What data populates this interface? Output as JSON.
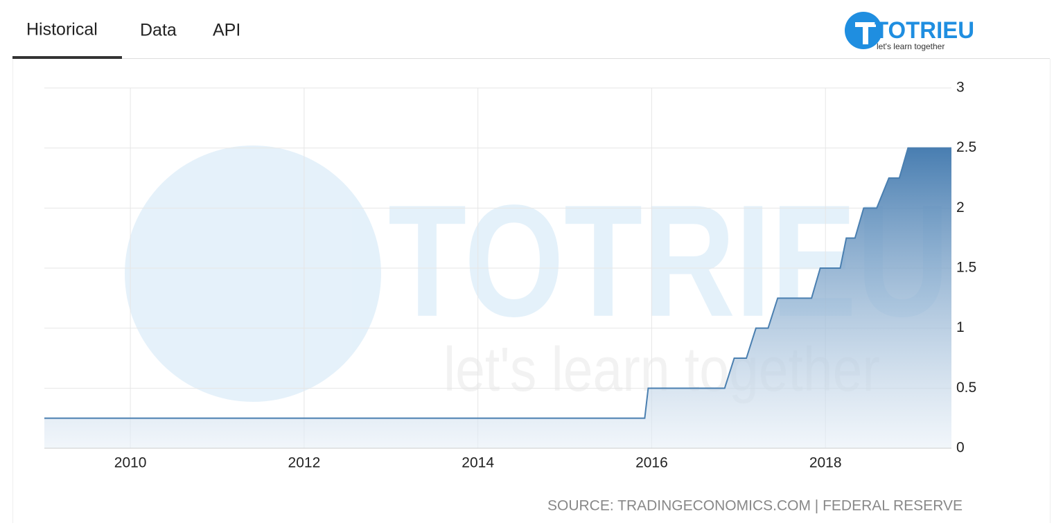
{
  "tabs": [
    "Historical",
    "Data",
    "API"
  ],
  "logo": {
    "name": "TOTRIEU",
    "tagline": "let's learn together"
  },
  "chart_data": {
    "type": "line",
    "x": [
      2009.01,
      2015.92,
      2015.96,
      2016.84,
      2016.95,
      2017.09,
      2017.2,
      2017.34,
      2017.45,
      2017.84,
      2017.94,
      2018.17,
      2018.24,
      2018.34,
      2018.44,
      2018.59,
      2018.73,
      2018.85,
      2018.95,
      2019.45
    ],
    "values": [
      0.25,
      0.25,
      0.5,
      0.5,
      0.75,
      0.75,
      1,
      1,
      1.25,
      1.25,
      1.5,
      1.5,
      1.75,
      1.75,
      2,
      2,
      2.25,
      2.25,
      2.5,
      2.5
    ],
    "color": "#4a7fb0",
    "xlim": [
      2009.01,
      2019.45
    ],
    "xticks": [
      2010,
      2012,
      2014,
      2016,
      2018
    ],
    "ylim": [
      0,
      3
    ],
    "yticks": [
      0,
      0.5,
      1,
      1.5,
      2,
      2.5,
      3
    ],
    "grid": true,
    "source": "SOURCE: TRADINGECONOMICS.COM | FEDERAL RESERVE"
  }
}
